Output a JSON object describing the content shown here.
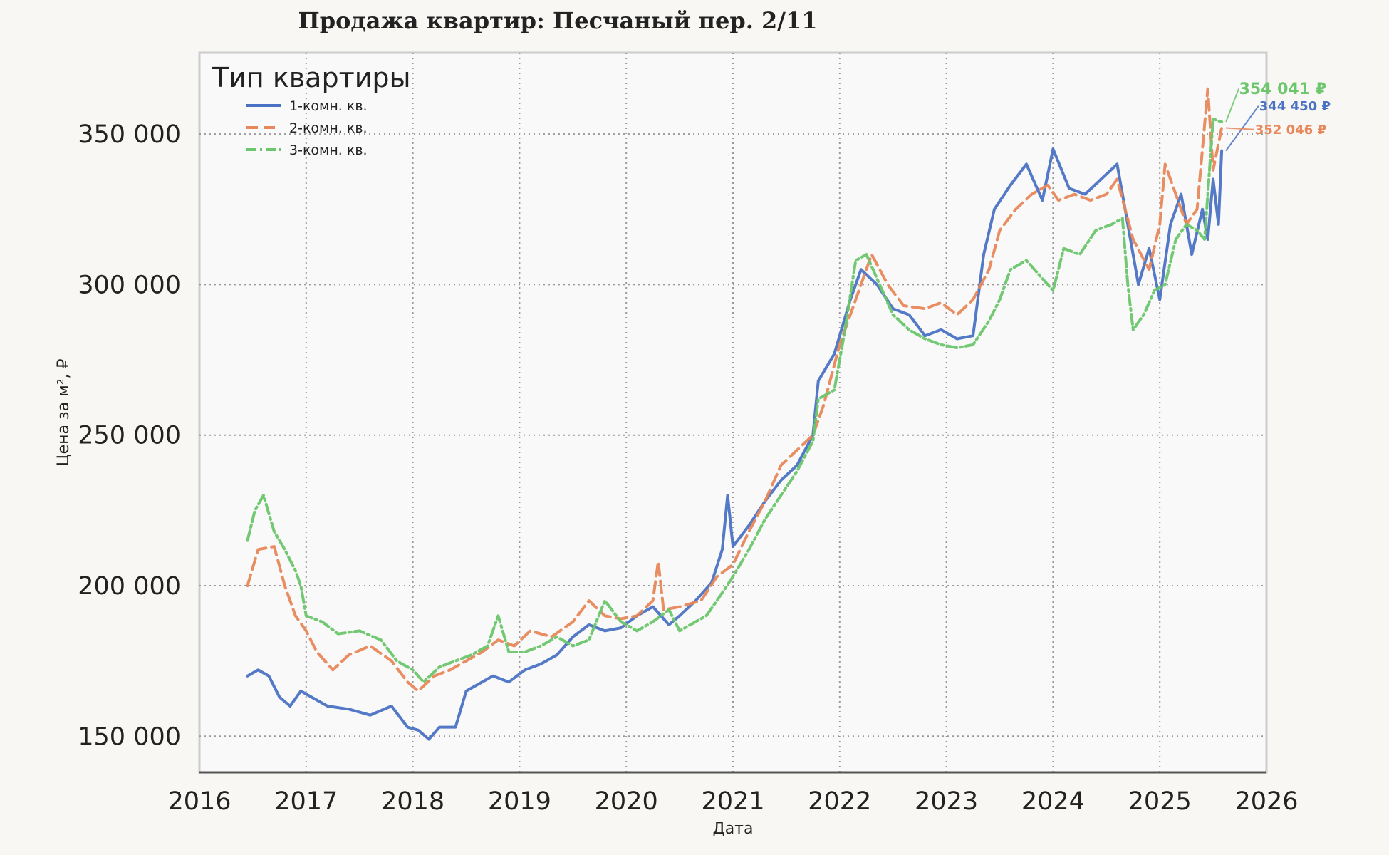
{
  "chart_data": {
    "type": "line",
    "title": "Продажа квартир: Песчаный пер. 2/11",
    "xlabel": "Дата",
    "ylabel": "Цена за м², ₽",
    "xlim": [
      2016.0,
      2026.0
    ],
    "ylim": [
      138000,
      377000
    ],
    "x_ticks": [
      "2016",
      "2017",
      "2018",
      "2019",
      "2020",
      "2021",
      "2022",
      "2023",
      "2024",
      "2025",
      "2026"
    ],
    "y_ticks": [
      "150 000",
      "200 000",
      "250 000",
      "300 000",
      "350 000"
    ],
    "y_tick_values": [
      150000,
      200000,
      250000,
      300000,
      350000
    ],
    "grid": true,
    "legend": {
      "title": "Тип квартиры",
      "position": "top-left"
    },
    "series": [
      {
        "name": "1-комн. кв.",
        "color": "#4a72c4",
        "style": "solid",
        "end_label": "344 450 ₽",
        "x": [
          2016.45,
          2016.55,
          2016.65,
          2016.75,
          2016.85,
          2016.95,
          2017.05,
          2017.2,
          2017.4,
          2017.6,
          2017.8,
          2017.95,
          2018.05,
          2018.15,
          2018.25,
          2018.4,
          2018.5,
          2018.6,
          2018.75,
          2018.9,
          2019.05,
          2019.2,
          2019.35,
          2019.5,
          2019.65,
          2019.8,
          2019.95,
          2020.1,
          2020.25,
          2020.4,
          2020.5,
          2020.65,
          2020.8,
          2020.9,
          2020.95,
          2021.0,
          2021.15,
          2021.3,
          2021.45,
          2021.6,
          2021.75,
          2021.8,
          2021.95,
          2022.1,
          2022.2,
          2022.35,
          2022.5,
          2022.65,
          2022.8,
          2022.95,
          2023.1,
          2023.25,
          2023.35,
          2023.45,
          2023.6,
          2023.75,
          2023.9,
          2024.0,
          2024.15,
          2024.3,
          2024.45,
          2024.6,
          2024.7,
          2024.8,
          2024.9,
          2025.0,
          2025.1,
          2025.2,
          2025.3,
          2025.4,
          2025.45,
          2025.5,
          2025.55,
          2025.58
        ],
        "y": [
          170000,
          172000,
          170000,
          163000,
          160000,
          165000,
          163000,
          160000,
          159000,
          157000,
          160000,
          153000,
          152000,
          149000,
          153000,
          153000,
          165000,
          167000,
          170000,
          168000,
          172000,
          174000,
          177000,
          183000,
          187000,
          185000,
          186000,
          190000,
          193000,
          187000,
          190000,
          195000,
          201000,
          212000,
          230000,
          213000,
          220000,
          228000,
          235000,
          240000,
          250000,
          268000,
          277000,
          295000,
          305000,
          300000,
          292000,
          290000,
          283000,
          285000,
          282000,
          283000,
          310000,
          325000,
          333000,
          340000,
          328000,
          345000,
          332000,
          330000,
          335000,
          340000,
          320000,
          300000,
          312000,
          295000,
          320000,
          330000,
          310000,
          325000,
          315000,
          335000,
          320000,
          344450
        ]
      },
      {
        "name": "2-комн. кв.",
        "color": "#e8875a",
        "style": "dashed",
        "end_label": "352 046 ₽",
        "x": [
          2016.45,
          2016.55,
          2016.7,
          2016.8,
          2016.9,
          2017.0,
          2017.1,
          2017.25,
          2017.4,
          2017.6,
          2017.8,
          2017.95,
          2018.05,
          2018.2,
          2018.35,
          2018.5,
          2018.65,
          2018.8,
          2018.95,
          2019.1,
          2019.3,
          2019.5,
          2019.65,
          2019.8,
          2019.95,
          2020.1,
          2020.25,
          2020.3,
          2020.35,
          2020.5,
          2020.7,
          2020.85,
          2021.0,
          2021.15,
          2021.3,
          2021.45,
          2021.6,
          2021.75,
          2021.85,
          2022.0,
          2022.15,
          2022.3,
          2022.45,
          2022.6,
          2022.8,
          2022.95,
          2023.1,
          2023.25,
          2023.4,
          2023.5,
          2023.65,
          2023.8,
          2023.95,
          2024.05,
          2024.2,
          2024.35,
          2024.5,
          2024.6,
          2024.75,
          2024.9,
          2025.0,
          2025.05,
          2025.15,
          2025.25,
          2025.35,
          2025.4,
          2025.45,
          2025.5,
          2025.58
        ],
        "y": [
          200000,
          212000,
          213000,
          200000,
          190000,
          185000,
          178000,
          172000,
          177000,
          180000,
          175000,
          168000,
          165000,
          170000,
          172000,
          175000,
          178000,
          182000,
          180000,
          185000,
          183000,
          188000,
          195000,
          190000,
          189000,
          190000,
          195000,
          208000,
          192000,
          193000,
          195000,
          203000,
          207000,
          218000,
          228000,
          240000,
          245000,
          250000,
          260000,
          280000,
          295000,
          310000,
          300000,
          293000,
          292000,
          294000,
          290000,
          295000,
          305000,
          318000,
          325000,
          330000,
          333000,
          328000,
          330000,
          328000,
          330000,
          335000,
          315000,
          305000,
          320000,
          340000,
          330000,
          320000,
          325000,
          345000,
          365000,
          338000,
          352046
        ]
      },
      {
        "name": "3-комн. кв.",
        "color": "#6cc66c",
        "style": "dashdot",
        "end_label": "354 041 ₽",
        "x": [
          2016.45,
          2016.52,
          2016.6,
          2016.7,
          2016.8,
          2016.9,
          2016.95,
          2017.0,
          2017.15,
          2017.3,
          2017.5,
          2017.7,
          2017.85,
          2018.0,
          2018.1,
          2018.25,
          2018.4,
          2018.55,
          2018.7,
          2018.8,
          2018.9,
          2019.05,
          2019.2,
          2019.35,
          2019.5,
          2019.65,
          2019.8,
          2019.95,
          2020.1,
          2020.25,
          2020.4,
          2020.5,
          2020.6,
          2020.75,
          2020.85,
          2021.0,
          2021.15,
          2021.3,
          2021.45,
          2021.6,
          2021.75,
          2021.8,
          2021.95,
          2022.05,
          2022.15,
          2022.25,
          2022.35,
          2022.5,
          2022.65,
          2022.8,
          2022.95,
          2023.1,
          2023.25,
          2023.4,
          2023.5,
          2023.6,
          2023.75,
          2023.9,
          2024.0,
          2024.1,
          2024.25,
          2024.4,
          2024.55,
          2024.65,
          2024.7,
          2024.75,
          2024.85,
          2024.95,
          2025.05,
          2025.15,
          2025.25,
          2025.35,
          2025.42,
          2025.47,
          2025.5,
          2025.58
        ],
        "y": [
          215000,
          225000,
          230000,
          218000,
          212000,
          205000,
          200000,
          190000,
          188000,
          184000,
          185000,
          182000,
          175000,
          172000,
          168000,
          173000,
          175000,
          177000,
          180000,
          190000,
          178000,
          178000,
          180000,
          183000,
          180000,
          182000,
          195000,
          188000,
          185000,
          188000,
          192000,
          185000,
          187000,
          190000,
          195000,
          203000,
          212000,
          222000,
          230000,
          238000,
          248000,
          262000,
          265000,
          285000,
          308000,
          310000,
          302000,
          290000,
          285000,
          282000,
          280000,
          279000,
          280000,
          288000,
          295000,
          305000,
          308000,
          302000,
          298000,
          312000,
          310000,
          318000,
          320000,
          322000,
          300000,
          285000,
          290000,
          298000,
          300000,
          315000,
          320000,
          318000,
          315000,
          340000,
          355000,
          354041
        ]
      }
    ]
  }
}
